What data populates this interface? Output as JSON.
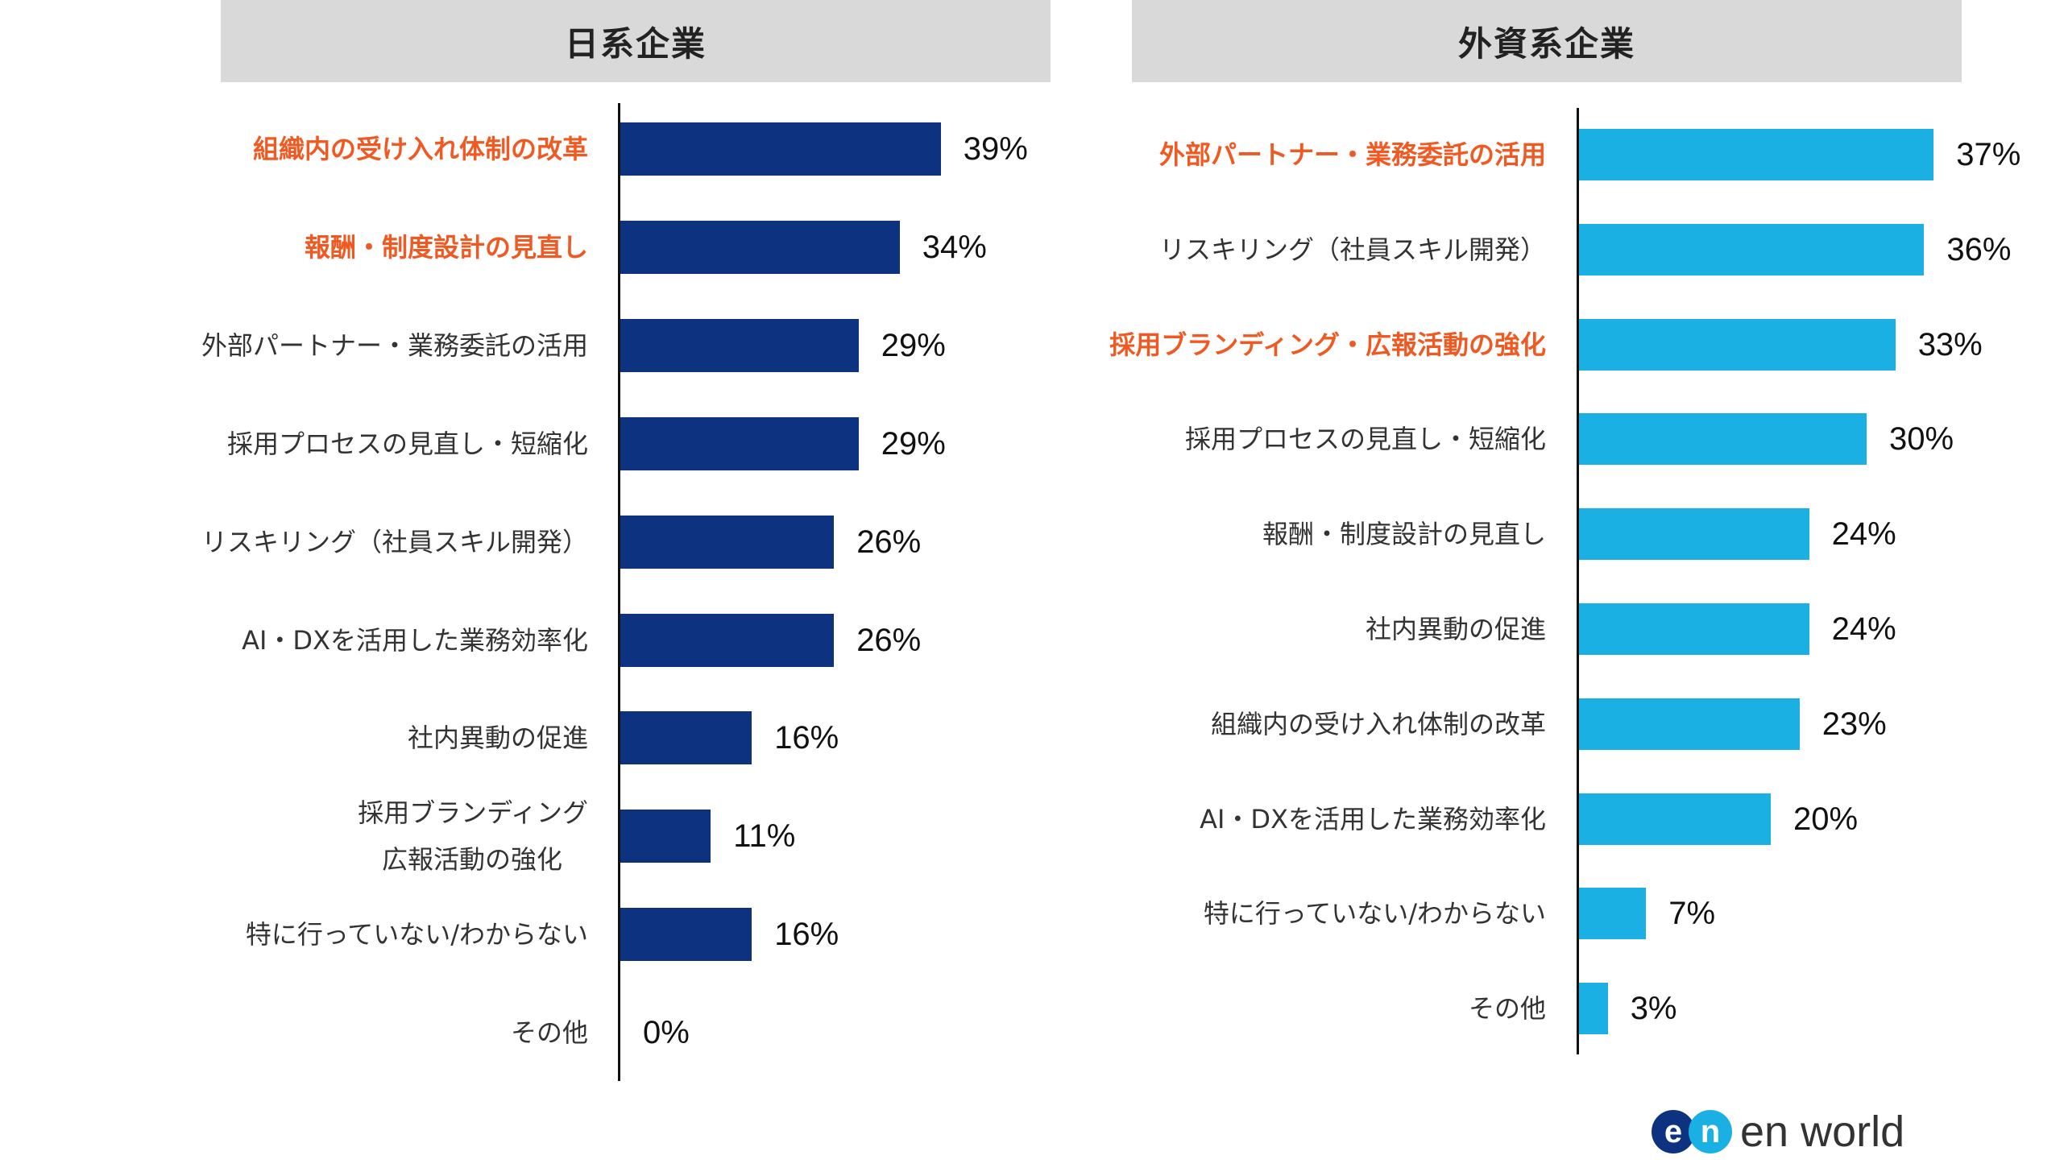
{
  "chart_data": [
    {
      "type": "bar",
      "orientation": "horizontal",
      "title": "日系企業",
      "bar_color": "#0d3380",
      "highlight_color": "#f05a22",
      "categories": [
        "組織内の受け入れ体制の改革",
        "報酬・制度設計の見直し",
        "外部パートナー・業務委託の活用",
        "採用プロセスの見直し・短縮化",
        "リスキリング（社員スキル開発）",
        "AI・DXを活用した業務効率化",
        "社内異動の促進",
        "採用ブランディング\n広報活動の強化",
        "特に行っていない/わからない",
        "その他"
      ],
      "values": [
        39,
        34,
        29,
        29,
        26,
        26,
        16,
        11,
        16,
        0
      ],
      "value_labels": [
        "39%",
        "34%",
        "29%",
        "29%",
        "26%",
        "26%",
        "16%",
        "11%",
        "16%",
        "0%"
      ],
      "highlighted": [
        0,
        1
      ]
    },
    {
      "type": "bar",
      "orientation": "horizontal",
      "title": "外資系企業",
      "bar_color": "#1ab0e4",
      "highlight_color": "#f05a22",
      "categories": [
        "外部パートナー・業務委託の活用",
        "リスキリング（社員スキル開発）",
        "採用ブランディング・広報活動の強化",
        "採用プロセスの見直し・短縮化",
        "報酬・制度設計の見直し",
        "社内異動の促進",
        "組織内の受け入れ体制の改革",
        "AI・DXを活用した業務効率化",
        "特に行っていない/わからない",
        "その他"
      ],
      "values": [
        37,
        36,
        33,
        30,
        24,
        24,
        23,
        20,
        7,
        3
      ],
      "value_labels": [
        "37%",
        "36%",
        "33%",
        "30%",
        "24%",
        "24%",
        "23%",
        "20%",
        "7%",
        "3%"
      ],
      "highlighted": [
        0,
        2
      ]
    }
  ],
  "logo": {
    "text": "en world",
    "mark_left": "e",
    "mark_right": "n",
    "colors": [
      "#0d3380",
      "#1ab0e4"
    ]
  }
}
